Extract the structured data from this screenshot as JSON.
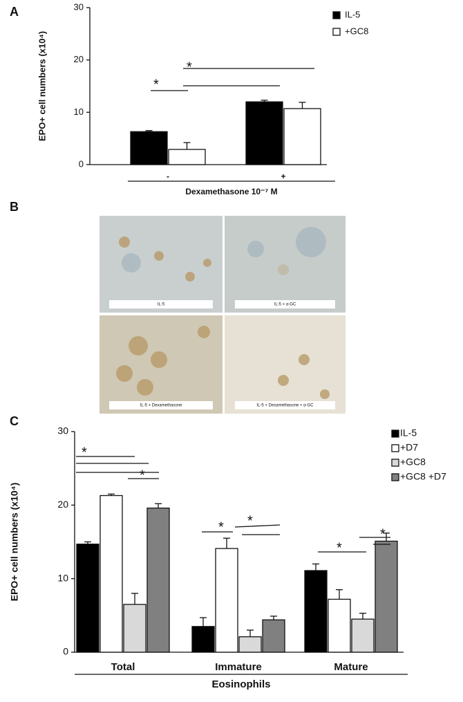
{
  "chart_data": [
    {
      "type": "bar",
      "panel": "A",
      "ylabel": "EPO+ cell numbers (x10⁴)",
      "xlabel": "Dexamethasone 10⁻⁷ M",
      "categories": [
        "-",
        "+"
      ],
      "ylim": [
        0,
        30
      ],
      "yticks": [
        0,
        10,
        20,
        30
      ],
      "series": [
        {
          "name": "IL-5",
          "color": "#000000",
          "values": [
            6.3,
            12.0
          ],
          "errors": [
            0.2,
            0.3
          ]
        },
        {
          "name": "+GC8",
          "color": "#ffffff",
          "values": [
            2.9,
            10.7
          ],
          "errors": [
            1.3,
            1.2
          ]
        }
      ],
      "annotations": [
        "*",
        "*"
      ]
    },
    {
      "type": "bar",
      "panel": "C",
      "ylabel": "EPO+ cell numbers (x10⁴)",
      "xlabel": "Eosinophils",
      "categories": [
        "Total",
        "Immature",
        "Mature"
      ],
      "ylim": [
        0,
        30
      ],
      "yticks": [
        0,
        10,
        20,
        30
      ],
      "series": [
        {
          "name": "IL-5",
          "color": "#000000",
          "values": [
            14.7,
            3.5,
            11.1
          ],
          "errors": [
            0.3,
            1.2,
            0.9
          ]
        },
        {
          "name": "+D7",
          "color": "#ffffff",
          "values": [
            21.3,
            14.1,
            7.2
          ],
          "errors": [
            0.2,
            1.4,
            1.3
          ]
        },
        {
          "name": "+GC8",
          "color": "#d9d9d9",
          "values": [
            6.5,
            2.1,
            4.5
          ],
          "errors": [
            1.5,
            0.9,
            0.8
          ]
        },
        {
          "name": "+GC8 +D7",
          "color": "#808080",
          "values": [
            19.6,
            4.4,
            15.1
          ],
          "errors": [
            0.6,
            0.5,
            1.1
          ]
        }
      ],
      "annotations": [
        "*",
        "*",
        "*",
        "*",
        "*",
        "*"
      ]
    }
  ],
  "panel_b": {
    "label": "B",
    "images": [
      "IL-5",
      "IL-5 + α-GC",
      "IL-5 + Dexamethasone",
      "IL-5 + Dexamethasone + α-GC"
    ]
  }
}
